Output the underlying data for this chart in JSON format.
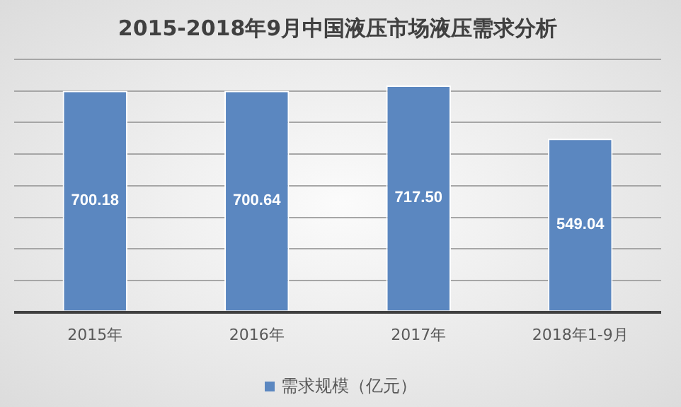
{
  "chart_data": {
    "type": "bar",
    "title": "2015-2018年9月中国液压市场液压需求分析",
    "categories": [
      "2015年",
      "2016年",
      "2017年",
      "2018年1-9月"
    ],
    "series": [
      {
        "name": "需求规模（亿元）",
        "color": "#5b87c0",
        "values": [
          700.18,
          700.64,
          717.5,
          549.04
        ],
        "value_labels": [
          "700.18",
          "700.64",
          "717.50",
          "549.04"
        ]
      }
    ],
    "tick_labels": "x",
    "grid": "y",
    "legend": "bottom"
  }
}
